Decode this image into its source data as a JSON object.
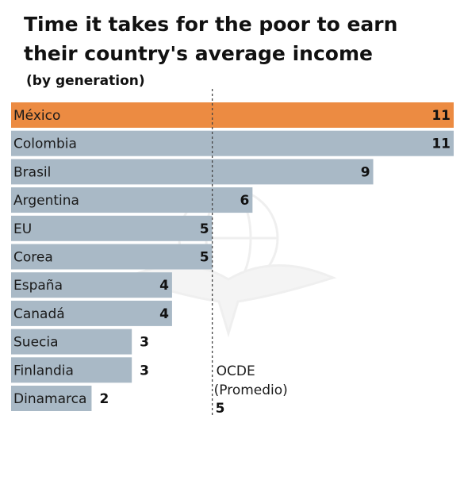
{
  "chart_data": {
    "type": "bar",
    "orientation": "horizontal",
    "title": "Time it takes for the poor to earn their country's average income",
    "subtitle": "(by generation)",
    "categories": [
      "México",
      "Colombia",
      "Brasil",
      "Argentina",
      "EU",
      "Corea",
      "España",
      "Canadá",
      "Suecia",
      "Finlandia",
      "Dinamarca"
    ],
    "values": [
      11,
      11,
      9,
      6,
      5,
      5,
      4,
      4,
      3,
      3,
      2
    ],
    "highlight": "México",
    "xlim": [
      0,
      11
    ],
    "grid": false,
    "legend": "none",
    "reference": {
      "label_line1": "OCDE",
      "label_line2": "(Promedio)",
      "value": 5
    },
    "colors": {
      "bar": "#a9b9c6",
      "highlight_bar": "#ec8b42",
      "reference_line": "#444444"
    }
  }
}
